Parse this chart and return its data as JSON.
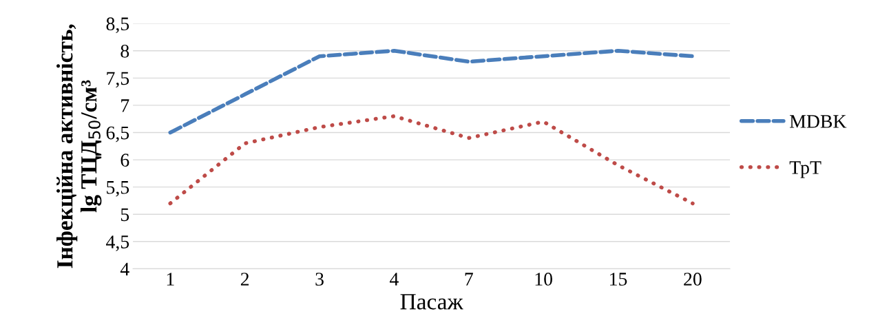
{
  "chart_data": {
    "type": "line",
    "xlabel": "Пасаж",
    "ylabel": "Інфекційна активність,\nlg ТЦД$_{50}$/см³",
    "categories": [
      "1",
      "2",
      "3",
      "4",
      "7",
      "10",
      "15",
      "20"
    ],
    "series": [
      {
        "name": "MDBK",
        "color": "#4a7ebb",
        "line_style": "dashed",
        "values": [
          6.5,
          7.2,
          7.9,
          8.0,
          7.8,
          7.9,
          8.0,
          7.9
        ]
      },
      {
        "name": "ТрТ",
        "color": "#be4b48",
        "line_style": "dotted",
        "values": [
          5.2,
          6.3,
          6.6,
          6.8,
          6.4,
          6.7,
          5.9,
          5.2
        ]
      }
    ],
    "ylim": [
      4,
      8.5
    ],
    "yticks": [
      4,
      {
        "value": 4.5,
        "label": "4,5"
      },
      5,
      {
        "value": 5.5,
        "label": "5,5"
      },
      6,
      {
        "value": 6.5,
        "label": "6,5"
      },
      7,
      {
        "value": 7.5,
        "label": "7,5"
      },
      8,
      {
        "value": 8.5,
        "label": "8,5"
      }
    ],
    "grid": "y",
    "legend": "right",
    "marker": "none"
  }
}
